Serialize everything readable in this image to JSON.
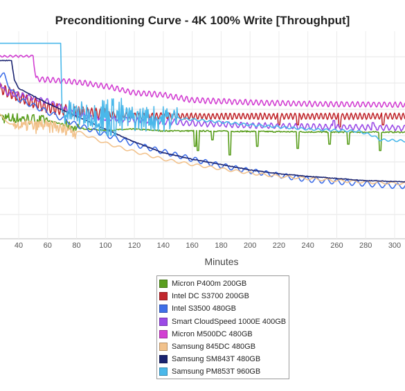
{
  "chart_data": {
    "type": "line",
    "title": "Preconditioning Curve - 4K 100% Write [Throughput]",
    "xlabel": "Minutes",
    "ylabel": "",
    "x_ticks": [
      40,
      60,
      80,
      100,
      120,
      140,
      160,
      180,
      200,
      220,
      240,
      260,
      280,
      300
    ],
    "xlim": [
      24,
      308
    ],
    "ylim": [
      0,
      1
    ],
    "grid": true,
    "legend_position": "bottom-center",
    "series": [
      {
        "name": "Micron P400m 200GB",
        "color": "#5a9e1e",
        "style": "p400m",
        "points": [
          [
            24,
            0.77
          ],
          [
            26,
            0.71
          ],
          [
            30,
            0.69
          ],
          [
            40,
            0.69
          ],
          [
            60,
            0.68
          ],
          [
            80,
            0.645
          ],
          [
            100,
            0.635
          ],
          [
            120,
            0.64
          ],
          [
            140,
            0.632
          ],
          [
            160,
            0.632
          ],
          [
            190,
            0.63
          ],
          [
            220,
            0.628
          ],
          [
            260,
            0.626
          ],
          [
            308,
            0.626
          ]
        ]
      },
      {
        "name": "Intel DC S3700 200GB",
        "color": "#c1272d",
        "style": "s3700",
        "points": [
          [
            24,
            0.84
          ],
          [
            40,
            0.79
          ],
          [
            60,
            0.74
          ],
          [
            80,
            0.72
          ],
          [
            100,
            0.71
          ],
          [
            120,
            0.702
          ],
          [
            160,
            0.7
          ],
          [
            200,
            0.7
          ],
          [
            260,
            0.7
          ],
          [
            308,
            0.7
          ]
        ]
      },
      {
        "name": "Intel S3500 480GB",
        "color": "#3f6fe8",
        "style": "s3500",
        "points": [
          [
            24,
            0.89
          ],
          [
            30,
            0.89
          ],
          [
            35,
            0.82
          ],
          [
            40,
            0.78
          ],
          [
            60,
            0.72
          ],
          [
            80,
            0.66
          ],
          [
            100,
            0.615
          ],
          [
            120,
            0.57
          ],
          [
            140,
            0.535
          ],
          [
            160,
            0.5
          ],
          [
            180,
            0.47
          ],
          [
            200,
            0.445
          ],
          [
            220,
            0.425
          ],
          [
            240,
            0.405
          ],
          [
            260,
            0.395
          ],
          [
            280,
            0.385
          ],
          [
            300,
            0.375
          ],
          [
            308,
            0.375
          ]
        ]
      },
      {
        "name": "Smart CloudSpeed 1000E 400GB",
        "color": "#9b4ae6",
        "style": "cloudspeed",
        "points": [
          [
            24,
            0.86
          ],
          [
            28,
            0.85
          ],
          [
            31,
            0.81
          ],
          [
            40,
            0.8
          ],
          [
            60,
            0.77
          ],
          [
            80,
            0.71
          ],
          [
            100,
            0.69
          ],
          [
            130,
            0.68
          ],
          [
            160,
            0.667
          ],
          [
            200,
            0.657
          ],
          [
            250,
            0.65
          ],
          [
            308,
            0.645
          ]
        ]
      },
      {
        "name": "Micron M500DC 480GB",
        "color": "#d23fd2",
        "style": "m500dc",
        "points": [
          [
            24,
            0.98
          ],
          [
            50,
            0.98
          ],
          [
            52,
            0.875
          ],
          [
            60,
            0.87
          ],
          [
            80,
            0.86
          ],
          [
            100,
            0.84
          ],
          [
            120,
            0.81
          ],
          [
            140,
            0.8
          ],
          [
            160,
            0.775
          ],
          [
            200,
            0.765
          ],
          [
            240,
            0.758
          ],
          [
            280,
            0.755
          ],
          [
            308,
            0.753
          ]
        ]
      },
      {
        "name": "Samsung 845DC 480GB",
        "color": "#f2c28c",
        "style": "sm845",
        "points": [
          [
            24,
            0.74
          ],
          [
            30,
            0.68
          ],
          [
            40,
            0.655
          ],
          [
            60,
            0.655
          ],
          [
            80,
            0.63
          ],
          [
            100,
            0.575
          ],
          [
            120,
            0.535
          ],
          [
            140,
            0.5
          ],
          [
            160,
            0.475
          ],
          [
            180,
            0.455
          ],
          [
            200,
            0.435
          ],
          [
            220,
            0.42
          ],
          [
            240,
            0.41
          ],
          [
            260,
            0.4
          ],
          [
            280,
            0.393
          ],
          [
            300,
            0.388
          ],
          [
            308,
            0.386
          ]
        ]
      },
      {
        "name": "Samsung SM843T 480GB",
        "color": "#1a2370",
        "style": "sm843t",
        "points": [
          [
            24,
            0.96
          ],
          [
            35,
            0.96
          ],
          [
            37,
            0.87
          ],
          [
            40,
            0.83
          ],
          [
            60,
            0.76
          ],
          [
            80,
            0.7
          ],
          [
            100,
            0.64
          ],
          [
            120,
            0.58
          ],
          [
            140,
            0.53
          ],
          [
            160,
            0.5
          ],
          [
            180,
            0.475
          ],
          [
            200,
            0.45
          ],
          [
            220,
            0.432
          ],
          [
            240,
            0.42
          ],
          [
            260,
            0.41
          ],
          [
            280,
            0.4
          ],
          [
            300,
            0.396
          ],
          [
            308,
            0.394
          ]
        ]
      },
      {
        "name": "Samsung PM853T 960GB",
        "color": "#4ab8ea",
        "style": "pm853t",
        "points": [
          [
            24,
            1.04
          ],
          [
            69,
            1.04
          ],
          [
            70,
            0.72
          ],
          [
            80,
            0.71
          ],
          [
            100,
            0.7
          ],
          [
            120,
            0.69
          ],
          [
            140,
            0.69
          ],
          [
            150,
            0.69
          ],
          [
            160,
            0.685
          ],
          [
            200,
            0.66
          ],
          [
            240,
            0.64
          ],
          [
            275,
            0.63
          ],
          [
            285,
            0.61
          ],
          [
            290,
            0.59
          ],
          [
            308,
            0.585
          ]
        ]
      }
    ]
  }
}
